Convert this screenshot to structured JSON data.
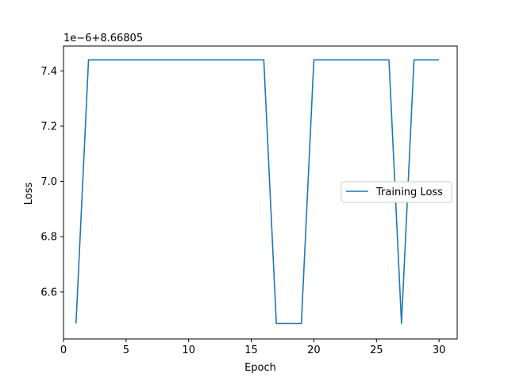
{
  "chart_data": {
    "type": "line",
    "title": "",
    "xlabel": "Epoch",
    "ylabel": "Loss",
    "y_offset_label": "1e−6+8.66805",
    "xlim": [
      0,
      31.45
    ],
    "ylim": [
      6.43,
      7.49
    ],
    "x_ticks": [
      0,
      5,
      10,
      15,
      20,
      25,
      30
    ],
    "y_ticks": [
      6.6,
      6.8,
      7.0,
      7.2,
      7.4
    ],
    "y_tick_labels": [
      "6.6",
      "6.8",
      "7.0",
      "7.2",
      "7.4"
    ],
    "grid": false,
    "legend_position": "center-right",
    "series": [
      {
        "name": "Training Loss",
        "color": "#1f77b4",
        "x": [
          1,
          2,
          3,
          4,
          5,
          6,
          7,
          8,
          9,
          10,
          11,
          12,
          13,
          14,
          15,
          16,
          17,
          18,
          19,
          20,
          21,
          22,
          23,
          24,
          25,
          26,
          27,
          28,
          29,
          30
        ],
        "y": [
          6.486,
          7.44,
          7.44,
          7.44,
          7.44,
          7.44,
          7.44,
          7.44,
          7.44,
          7.44,
          7.44,
          7.44,
          7.44,
          7.44,
          7.44,
          7.44,
          6.486,
          6.486,
          6.486,
          7.44,
          7.44,
          7.44,
          7.44,
          7.44,
          7.44,
          7.44,
          6.486,
          7.44,
          7.44,
          7.44
        ]
      }
    ]
  }
}
